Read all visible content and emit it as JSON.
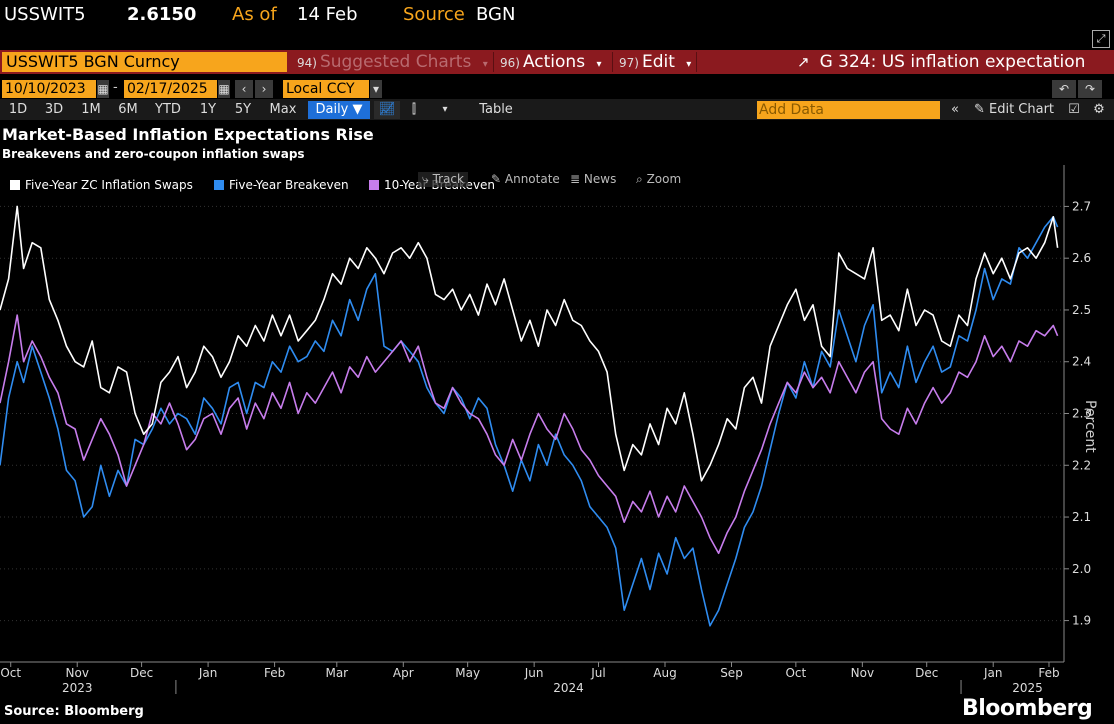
{
  "ticker": {
    "symbol": "USSWIT5",
    "price": "2.6150",
    "as_of_label": "As of",
    "as_of_date": "14 Feb",
    "source_label": "Source",
    "source_value": "BGN"
  },
  "command_bar": {
    "security": "USSWIT5 BGN Curncy",
    "suggested": {
      "num": "94)",
      "label": "Suggested Charts"
    },
    "actions": {
      "num": "96)",
      "label": "Actions"
    },
    "edit": {
      "num": "97)",
      "label": "Edit"
    },
    "chart_title": "G 324: US inflation expectation"
  },
  "date_range": {
    "start": "10/10/2023",
    "end": "02/17/2025",
    "currency": "Local CCY"
  },
  "toolbar": {
    "periods": [
      "1D",
      "3D",
      "1M",
      "6M",
      "YTD",
      "1Y",
      "5Y",
      "Max"
    ],
    "frequency": "Daily ▼",
    "table": "Table",
    "add_data_placeholder": "Add Data",
    "edit_chart": "Edit Chart"
  },
  "chart_tools": {
    "track": "Track",
    "annotate": "Annotate",
    "news": "News",
    "zoom": "Zoom"
  },
  "footer": {
    "source": "Source: Bloomberg",
    "brand": "Bloomberg"
  },
  "colors": {
    "white_series": "#ffffff",
    "blue_series": "#2f8cf0",
    "purple_series": "#c77dec",
    "bar_red": "#8b1a1f",
    "orange": "#f7a51c"
  },
  "chart_data": {
    "type": "line",
    "title": "Market-Based Inflation Expectations Rise",
    "subtitle": "Breakevens and zero-coupon inflation swaps",
    "ylabel": "Percent",
    "ylim": [
      1.82,
      2.78
    ],
    "yticks": [
      1.9,
      2.0,
      2.1,
      2.2,
      2.3,
      2.4,
      2.5,
      2.6,
      2.7
    ],
    "x_start": "2023-10-10",
    "x_end": "2025-02-17",
    "month_ticks": [
      {
        "label": "Oct",
        "date": "2023-10-15"
      },
      {
        "label": "Nov",
        "date": "2023-11-15"
      },
      {
        "label": "Dec",
        "date": "2023-12-15"
      },
      {
        "label": "Jan",
        "date": "2024-01-15"
      },
      {
        "label": "Feb",
        "date": "2024-02-15"
      },
      {
        "label": "Mar",
        "date": "2024-03-15"
      },
      {
        "label": "Apr",
        "date": "2024-04-15"
      },
      {
        "label": "May",
        "date": "2024-05-15"
      },
      {
        "label": "Jun",
        "date": "2024-06-15"
      },
      {
        "label": "Jul",
        "date": "2024-07-15"
      },
      {
        "label": "Aug",
        "date": "2024-08-15"
      },
      {
        "label": "Sep",
        "date": "2024-09-15"
      },
      {
        "label": "Oct",
        "date": "2024-10-15"
      },
      {
        "label": "Nov",
        "date": "2024-11-15"
      },
      {
        "label": "Dec",
        "date": "2024-12-15"
      },
      {
        "label": "Jan",
        "date": "2025-01-15"
      },
      {
        "label": "Feb",
        "date": "2025-02-10"
      }
    ],
    "year_labels": [
      {
        "label": "2023",
        "date": "2023-11-15"
      },
      {
        "label": "2024",
        "date": "2024-07-01"
      },
      {
        "label": "2025",
        "date": "2025-01-31"
      }
    ],
    "year_dividers": [
      "2023-12-31",
      "2024-12-31"
    ],
    "series": [
      {
        "name": "Five-Year ZC Inflation Swaps",
        "color": "#ffffff",
        "x": [
          "2023-10-10",
          "2023-10-14",
          "2023-10-18",
          "2023-10-21",
          "2023-10-25",
          "2023-10-29",
          "2023-11-02",
          "2023-11-06",
          "2023-11-10",
          "2023-11-14",
          "2023-11-18",
          "2023-11-22",
          "2023-11-26",
          "2023-11-30",
          "2023-12-04",
          "2023-12-08",
          "2023-12-12",
          "2023-12-16",
          "2023-12-20",
          "2023-12-24",
          "2023-12-28",
          "2024-01-01",
          "2024-01-05",
          "2024-01-09",
          "2024-01-13",
          "2024-01-17",
          "2024-01-21",
          "2024-01-25",
          "2024-01-29",
          "2024-02-02",
          "2024-02-06",
          "2024-02-10",
          "2024-02-14",
          "2024-02-18",
          "2024-02-22",
          "2024-02-26",
          "2024-03-01",
          "2024-03-05",
          "2024-03-09",
          "2024-03-13",
          "2024-03-17",
          "2024-03-21",
          "2024-03-25",
          "2024-03-29",
          "2024-04-02",
          "2024-04-06",
          "2024-04-10",
          "2024-04-14",
          "2024-04-18",
          "2024-04-22",
          "2024-04-26",
          "2024-04-30",
          "2024-05-04",
          "2024-05-08",
          "2024-05-12",
          "2024-05-16",
          "2024-05-20",
          "2024-05-24",
          "2024-05-28",
          "2024-06-01",
          "2024-06-05",
          "2024-06-09",
          "2024-06-13",
          "2024-06-17",
          "2024-06-21",
          "2024-06-25",
          "2024-06-29",
          "2024-07-03",
          "2024-07-07",
          "2024-07-11",
          "2024-07-15",
          "2024-07-19",
          "2024-07-23",
          "2024-07-27",
          "2024-07-31",
          "2024-08-04",
          "2024-08-08",
          "2024-08-12",
          "2024-08-16",
          "2024-08-20",
          "2024-08-24",
          "2024-08-28",
          "2024-09-01",
          "2024-09-05",
          "2024-09-09",
          "2024-09-13",
          "2024-09-17",
          "2024-09-21",
          "2024-09-25",
          "2024-09-29",
          "2024-10-03",
          "2024-10-07",
          "2024-10-11",
          "2024-10-15",
          "2024-10-19",
          "2024-10-23",
          "2024-10-27",
          "2024-10-31",
          "2024-11-04",
          "2024-11-08",
          "2024-11-12",
          "2024-11-16",
          "2024-11-20",
          "2024-11-24",
          "2024-11-28",
          "2024-12-02",
          "2024-12-06",
          "2024-12-10",
          "2024-12-14",
          "2024-12-18",
          "2024-12-22",
          "2024-12-26",
          "2024-12-30",
          "2025-01-03",
          "2025-01-07",
          "2025-01-11",
          "2025-01-15",
          "2025-01-19",
          "2025-01-23",
          "2025-01-27",
          "2025-01-31",
          "2025-02-04",
          "2025-02-08",
          "2025-02-12",
          "2025-02-14"
        ],
        "values": [
          2.5,
          2.56,
          2.7,
          2.58,
          2.63,
          2.62,
          2.52,
          2.48,
          2.43,
          2.4,
          2.39,
          2.44,
          2.35,
          2.34,
          2.39,
          2.38,
          2.3,
          2.26,
          2.28,
          2.36,
          2.38,
          2.41,
          2.35,
          2.38,
          2.43,
          2.41,
          2.37,
          2.4,
          2.45,
          2.43,
          2.47,
          2.44,
          2.49,
          2.45,
          2.49,
          2.44,
          2.46,
          2.48,
          2.52,
          2.57,
          2.55,
          2.6,
          2.58,
          2.62,
          2.6,
          2.57,
          2.61,
          2.62,
          2.6,
          2.63,
          2.6,
          2.53,
          2.52,
          2.54,
          2.5,
          2.53,
          2.49,
          2.55,
          2.51,
          2.56,
          2.5,
          2.44,
          2.48,
          2.43,
          2.5,
          2.47,
          2.52,
          2.48,
          2.47,
          2.44,
          2.42,
          2.38,
          2.26,
          2.19,
          2.24,
          2.22,
          2.28,
          2.24,
          2.31,
          2.28,
          2.34,
          2.26,
          2.17,
          2.2,
          2.24,
          2.29,
          2.27,
          2.35,
          2.37,
          2.32,
          2.43,
          2.47,
          2.51,
          2.54,
          2.48,
          2.51,
          2.43,
          2.41,
          2.61,
          2.58,
          2.57,
          2.56,
          2.62,
          2.48,
          2.49,
          2.46,
          2.54,
          2.47,
          2.5,
          2.49,
          2.44,
          2.43,
          2.49,
          2.47,
          2.56,
          2.61,
          2.57,
          2.6,
          2.56,
          2.61,
          2.62,
          2.6,
          2.63,
          2.68,
          2.62
        ]
      },
      {
        "name": "Five-Year Breakeven",
        "color": "#2f8cf0",
        "x": [
          "2023-10-10",
          "2023-10-14",
          "2023-10-18",
          "2023-10-21",
          "2023-10-25",
          "2023-10-29",
          "2023-11-02",
          "2023-11-06",
          "2023-11-10",
          "2023-11-14",
          "2023-11-18",
          "2023-11-22",
          "2023-11-26",
          "2023-11-30",
          "2023-12-04",
          "2023-12-08",
          "2023-12-12",
          "2023-12-16",
          "2023-12-20",
          "2023-12-24",
          "2023-12-28",
          "2024-01-01",
          "2024-01-05",
          "2024-01-09",
          "2024-01-13",
          "2024-01-17",
          "2024-01-21",
          "2024-01-25",
          "2024-01-29",
          "2024-02-02",
          "2024-02-06",
          "2024-02-10",
          "2024-02-14",
          "2024-02-18",
          "2024-02-22",
          "2024-02-26",
          "2024-03-01",
          "2024-03-05",
          "2024-03-09",
          "2024-03-13",
          "2024-03-17",
          "2024-03-21",
          "2024-03-25",
          "2024-03-29",
          "2024-04-02",
          "2024-04-06",
          "2024-04-10",
          "2024-04-14",
          "2024-04-18",
          "2024-04-22",
          "2024-04-26",
          "2024-04-30",
          "2024-05-04",
          "2024-05-08",
          "2024-05-12",
          "2024-05-16",
          "2024-05-20",
          "2024-05-24",
          "2024-05-28",
          "2024-06-01",
          "2024-06-05",
          "2024-06-09",
          "2024-06-13",
          "2024-06-17",
          "2024-06-21",
          "2024-06-25",
          "2024-06-29",
          "2024-07-03",
          "2024-07-07",
          "2024-07-11",
          "2024-07-15",
          "2024-07-19",
          "2024-07-23",
          "2024-07-27",
          "2024-07-31",
          "2024-08-04",
          "2024-08-08",
          "2024-08-12",
          "2024-08-16",
          "2024-08-20",
          "2024-08-24",
          "2024-08-28",
          "2024-09-01",
          "2024-09-05",
          "2024-09-09",
          "2024-09-13",
          "2024-09-17",
          "2024-09-21",
          "2024-09-25",
          "2024-09-29",
          "2024-10-03",
          "2024-10-07",
          "2024-10-11",
          "2024-10-15",
          "2024-10-19",
          "2024-10-23",
          "2024-10-27",
          "2024-10-31",
          "2024-11-04",
          "2024-11-08",
          "2024-11-12",
          "2024-11-16",
          "2024-11-20",
          "2024-11-24",
          "2024-11-28",
          "2024-12-02",
          "2024-12-06",
          "2024-12-10",
          "2024-12-14",
          "2024-12-18",
          "2024-12-22",
          "2024-12-26",
          "2024-12-30",
          "2025-01-03",
          "2025-01-07",
          "2025-01-11",
          "2025-01-15",
          "2025-01-19",
          "2025-01-23",
          "2025-01-27",
          "2025-01-31",
          "2025-02-04",
          "2025-02-08",
          "2025-02-12",
          "2025-02-14"
        ],
        "values": [
          2.2,
          2.33,
          2.4,
          2.36,
          2.43,
          2.38,
          2.33,
          2.27,
          2.19,
          2.17,
          2.1,
          2.12,
          2.2,
          2.14,
          2.19,
          2.16,
          2.25,
          2.24,
          2.27,
          2.31,
          2.28,
          2.3,
          2.29,
          2.26,
          2.33,
          2.31,
          2.28,
          2.35,
          2.36,
          2.3,
          2.36,
          2.35,
          2.4,
          2.38,
          2.43,
          2.4,
          2.41,
          2.44,
          2.42,
          2.48,
          2.45,
          2.52,
          2.48,
          2.54,
          2.57,
          2.43,
          2.42,
          2.44,
          2.42,
          2.4,
          2.35,
          2.32,
          2.3,
          2.35,
          2.33,
          2.29,
          2.33,
          2.31,
          2.24,
          2.2,
          2.15,
          2.21,
          2.17,
          2.24,
          2.2,
          2.26,
          2.22,
          2.2,
          2.17,
          2.12,
          2.1,
          2.08,
          2.04,
          1.92,
          1.97,
          2.02,
          1.96,
          2.03,
          1.99,
          2.06,
          2.02,
          2.04,
          1.96,
          1.89,
          1.92,
          1.97,
          2.02,
          2.08,
          2.11,
          2.16,
          2.23,
          2.3,
          2.36,
          2.33,
          2.4,
          2.35,
          2.42,
          2.39,
          2.5,
          2.45,
          2.4,
          2.47,
          2.51,
          2.34,
          2.38,
          2.35,
          2.43,
          2.36,
          2.4,
          2.43,
          2.38,
          2.39,
          2.45,
          2.44,
          2.5,
          2.58,
          2.52,
          2.56,
          2.55,
          2.62,
          2.6,
          2.63,
          2.66,
          2.68,
          2.66
        ]
      },
      {
        "name": "10-Year Breakeven",
        "color": "#c77dec",
        "x": [
          "2023-10-10",
          "2023-10-14",
          "2023-10-18",
          "2023-10-21",
          "2023-10-25",
          "2023-10-29",
          "2023-11-02",
          "2023-11-06",
          "2023-11-10",
          "2023-11-14",
          "2023-11-18",
          "2023-11-22",
          "2023-11-26",
          "2023-11-30",
          "2023-12-04",
          "2023-12-08",
          "2023-12-12",
          "2023-12-16",
          "2023-12-20",
          "2023-12-24",
          "2023-12-28",
          "2024-01-01",
          "2024-01-05",
          "2024-01-09",
          "2024-01-13",
          "2024-01-17",
          "2024-01-21",
          "2024-01-25",
          "2024-01-29",
          "2024-02-02",
          "2024-02-06",
          "2024-02-10",
          "2024-02-14",
          "2024-02-18",
          "2024-02-22",
          "2024-02-26",
          "2024-03-01",
          "2024-03-05",
          "2024-03-09",
          "2024-03-13",
          "2024-03-17",
          "2024-03-21",
          "2024-03-25",
          "2024-03-29",
          "2024-04-02",
          "2024-04-06",
          "2024-04-10",
          "2024-04-14",
          "2024-04-18",
          "2024-04-22",
          "2024-04-26",
          "2024-04-30",
          "2024-05-04",
          "2024-05-08",
          "2024-05-12",
          "2024-05-16",
          "2024-05-20",
          "2024-05-24",
          "2024-05-28",
          "2024-06-01",
          "2024-06-05",
          "2024-06-09",
          "2024-06-13",
          "2024-06-17",
          "2024-06-21",
          "2024-06-25",
          "2024-06-29",
          "2024-07-03",
          "2024-07-07",
          "2024-07-11",
          "2024-07-15",
          "2024-07-19",
          "2024-07-23",
          "2024-07-27",
          "2024-07-31",
          "2024-08-04",
          "2024-08-08",
          "2024-08-12",
          "2024-08-16",
          "2024-08-20",
          "2024-08-24",
          "2024-08-28",
          "2024-09-01",
          "2024-09-05",
          "2024-09-09",
          "2024-09-13",
          "2024-09-17",
          "2024-09-21",
          "2024-09-25",
          "2024-09-29",
          "2024-10-03",
          "2024-10-07",
          "2024-10-11",
          "2024-10-15",
          "2024-10-19",
          "2024-10-23",
          "2024-10-27",
          "2024-10-31",
          "2024-11-04",
          "2024-11-08",
          "2024-11-12",
          "2024-11-16",
          "2024-11-20",
          "2024-11-24",
          "2024-11-28",
          "2024-12-02",
          "2024-12-06",
          "2024-12-10",
          "2024-12-14",
          "2024-12-18",
          "2024-12-22",
          "2024-12-26",
          "2024-12-30",
          "2025-01-03",
          "2025-01-07",
          "2025-01-11",
          "2025-01-15",
          "2025-01-19",
          "2025-01-23",
          "2025-01-27",
          "2025-01-31",
          "2025-02-04",
          "2025-02-08",
          "2025-02-12",
          "2025-02-14"
        ],
        "values": [
          2.32,
          2.4,
          2.49,
          2.4,
          2.44,
          2.41,
          2.37,
          2.34,
          2.28,
          2.27,
          2.21,
          2.25,
          2.29,
          2.26,
          2.22,
          2.16,
          2.2,
          2.24,
          2.3,
          2.28,
          2.32,
          2.28,
          2.23,
          2.25,
          2.29,
          2.3,
          2.26,
          2.31,
          2.33,
          2.27,
          2.32,
          2.29,
          2.34,
          2.31,
          2.36,
          2.3,
          2.34,
          2.32,
          2.35,
          2.38,
          2.34,
          2.39,
          2.37,
          2.41,
          2.38,
          2.4,
          2.42,
          2.44,
          2.4,
          2.43,
          2.37,
          2.32,
          2.31,
          2.35,
          2.32,
          2.3,
          2.29,
          2.26,
          2.22,
          2.2,
          2.25,
          2.21,
          2.26,
          2.3,
          2.27,
          2.25,
          2.3,
          2.27,
          2.23,
          2.21,
          2.18,
          2.16,
          2.14,
          2.09,
          2.13,
          2.11,
          2.15,
          2.1,
          2.14,
          2.11,
          2.16,
          2.13,
          2.1,
          2.06,
          2.03,
          2.07,
          2.1,
          2.15,
          2.19,
          2.23,
          2.28,
          2.32,
          2.36,
          2.34,
          2.38,
          2.35,
          2.37,
          2.34,
          2.4,
          2.37,
          2.34,
          2.38,
          2.4,
          2.29,
          2.27,
          2.26,
          2.31,
          2.28,
          2.32,
          2.35,
          2.32,
          2.34,
          2.38,
          2.37,
          2.4,
          2.45,
          2.41,
          2.43,
          2.4,
          2.44,
          2.43,
          2.46,
          2.45,
          2.47,
          2.45
        ]
      }
    ]
  }
}
